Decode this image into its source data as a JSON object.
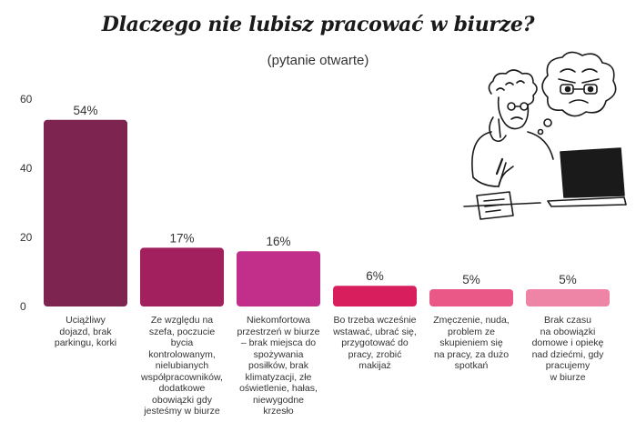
{
  "title": "Dlaczego nie lubisz pracować w biurze?",
  "subtitle": "(pytanie otwarte)",
  "chart_data": {
    "type": "bar",
    "title": "Dlaczego nie lubisz pracować w biurze?",
    "subtitle": "(pytanie otwarte)",
    "xlabel": "",
    "ylabel": "",
    "ylim": [
      0,
      60
    ],
    "yticks": [
      0,
      20,
      40,
      60
    ],
    "grid": false,
    "categories": [
      "Uciążliwy dojazd, brak parkingu, korki",
      "Ze względu na szefa, poczucie bycia kontrolowanym, nielubianych współpracowników, dodatkowe obowiązki gdy jesteśmy w biurze",
      "Niekomfortowa przestrzeń w biurze – brak miejsca do spożywania posiłków, brak klimatyzacji, złe oświetlenie, hałas, niewygodne krzesło",
      "Bo trzeba wcześnie wstawać, ubrać się, przygotować do pracy, zrobić makijaż",
      "Zmęczenie, nuda, problem ze skupieniem się na pracy, za dużo spotkań",
      "Brak czasu na obowiązki domowe i opiekę nad dziećmi, gdy pracujemy w biurze"
    ],
    "category_lines": [
      [
        "Uciążliwy",
        "dojazd, brak",
        "parkingu, korki"
      ],
      [
        "Ze względu na",
        "szefa, poczucie bycia",
        "kontrolowanym,",
        "nielubianych",
        "współpracowników,",
        "dodatkowe",
        "obowiązki gdy",
        "jesteśmy w biurze"
      ],
      [
        "Niekomfortowa",
        "przestrzeń w biurze",
        "– brak miejsca do",
        "spożywania",
        "posiłków, brak",
        "klimatyzacji, złe",
        "oświetlenie, hałas,",
        "niewygodne",
        "krzesło"
      ],
      [
        "Bo trzeba wcześnie",
        "wstawać, ubrać się,",
        "przygotować do",
        "pracy, zrobić",
        "makijaż"
      ],
      [
        "Zmęczenie, nuda,",
        "problem ze",
        "skupieniem się",
        "na pracy, za dużo",
        "spotkań"
      ],
      [
        "Brak czasu",
        "na obowiązki",
        "domowe i opiekę",
        "nad dziećmi, gdy",
        "pracujemy",
        "w biurze"
      ]
    ],
    "values": [
      54,
      17,
      16,
      6,
      5,
      5
    ],
    "value_labels": [
      "54%",
      "17%",
      "16%",
      "6%",
      "5%",
      "5%"
    ],
    "colors": [
      "#7d2450",
      "#a3205f",
      "#c12f8a",
      "#d91e5d",
      "#ea5887",
      "#ee84a6"
    ],
    "illustration": "person-thinking-at-laptop-illustration"
  }
}
